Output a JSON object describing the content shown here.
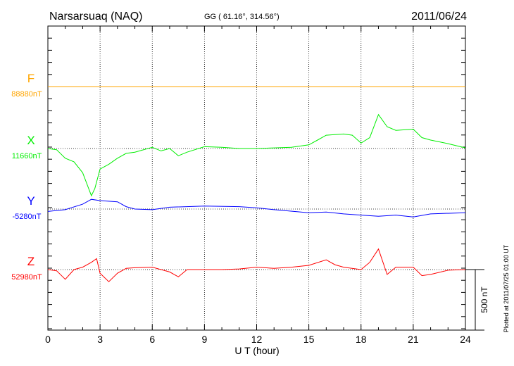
{
  "header": {
    "station": "Narsarsuaq (NAQ)",
    "coords": "GG ( 61.16°, 314.56°)",
    "date": "2011/06/24"
  },
  "footer": {
    "plotted": "Plotted at 2011/07/25 01:00 UT"
  },
  "chart_data": {
    "type": "line",
    "xlabel": "U T (hour)",
    "xlim": [
      0,
      24
    ],
    "xticks": [
      "0",
      "3",
      "6",
      "9",
      "12",
      "15",
      "18",
      "21",
      "24"
    ],
    "scale_bar": "500 nT",
    "scale_nT": 500,
    "series": [
      {
        "name": "F",
        "baseline_label": "88880nT",
        "color": "#ffa500",
        "x": [
          0,
          24
        ],
        "values": [
          0,
          0
        ]
      },
      {
        "name": "X",
        "baseline_label": "11660nT",
        "color": "#00ee00",
        "x": [
          0,
          0.5,
          1,
          1.5,
          2,
          2.5,
          2.7,
          3,
          3.5,
          4,
          4.5,
          5,
          6,
          6.5,
          7,
          7.5,
          8,
          9,
          10,
          11,
          12,
          13,
          14,
          15,
          15.5,
          16,
          17,
          17.5,
          18,
          18.5,
          19,
          19.5,
          20,
          21,
          21.5,
          22,
          23,
          24
        ],
        "values": [
          0,
          -10,
          -80,
          -110,
          -200,
          -390,
          -330,
          -170,
          -130,
          -80,
          -40,
          -30,
          10,
          -20,
          0,
          -60,
          -30,
          15,
          10,
          0,
          0,
          5,
          10,
          30,
          70,
          110,
          120,
          110,
          45,
          90,
          280,
          180,
          150,
          160,
          90,
          70,
          40,
          5
        ]
      },
      {
        "name": "Y",
        "baseline_label": "-5280nT",
        "color": "#0000ff",
        "x": [
          0,
          1,
          2,
          2.5,
          3,
          4,
          4.5,
          5,
          6,
          7,
          9,
          11,
          12,
          13,
          15,
          16,
          17,
          18,
          19,
          20,
          21,
          22,
          24
        ],
        "values": [
          -20,
          -5,
          40,
          80,
          70,
          60,
          20,
          0,
          -5,
          15,
          25,
          20,
          10,
          -5,
          -30,
          -25,
          -40,
          -50,
          -60,
          -50,
          -65,
          -40,
          -30
        ]
      },
      {
        "name": "Z",
        "baseline_label": "52980nT",
        "color": "#ff0000",
        "x": [
          0,
          0.5,
          1,
          1.5,
          2,
          2.5,
          2.8,
          3,
          3.5,
          4,
          4.5,
          5,
          6,
          7,
          7.5,
          8,
          9,
          10,
          11,
          12,
          13,
          14,
          15,
          16,
          16.5,
          17,
          18,
          18.5,
          19,
          19.5,
          20,
          21,
          21.5,
          22,
          23,
          24
        ],
        "values": [
          0,
          -10,
          -80,
          0,
          20,
          60,
          90,
          -30,
          -100,
          -30,
          10,
          15,
          20,
          -20,
          -60,
          0,
          0,
          0,
          5,
          20,
          10,
          20,
          35,
          80,
          40,
          20,
          0,
          60,
          170,
          -40,
          20,
          20,
          -50,
          -40,
          -5,
          0
        ]
      }
    ]
  }
}
